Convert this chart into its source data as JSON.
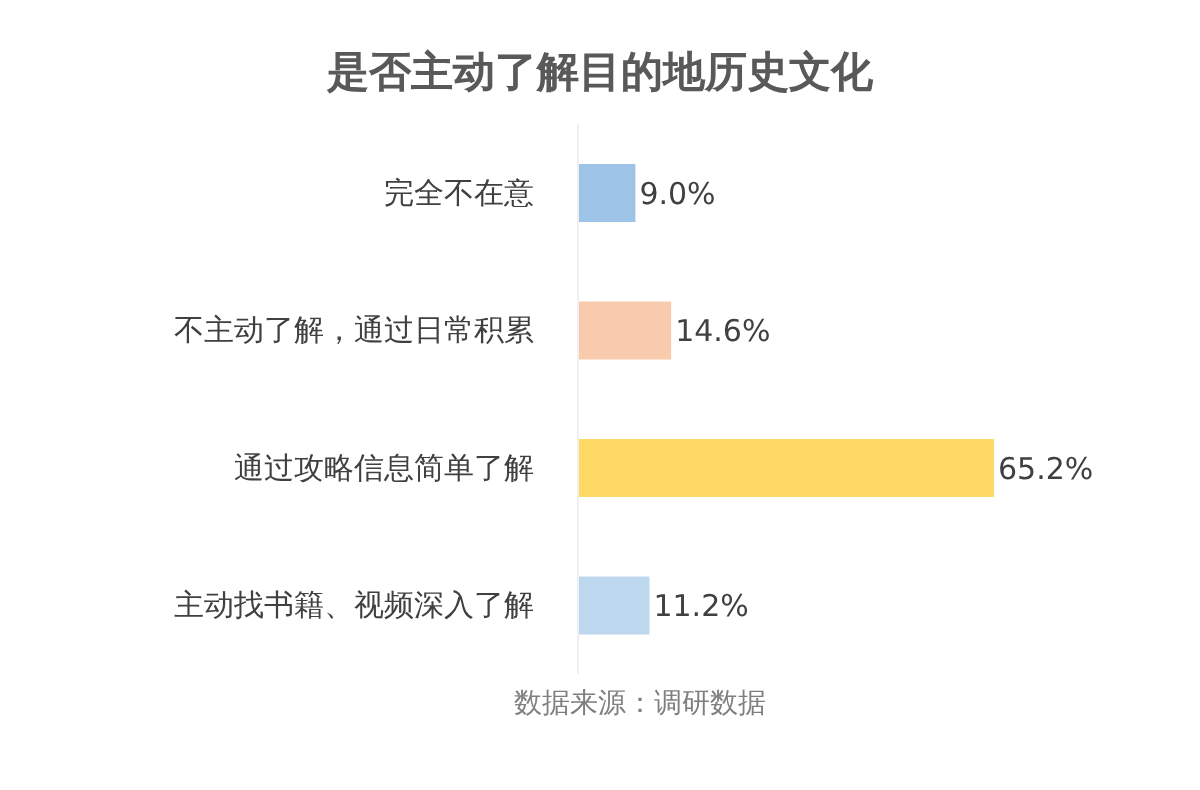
{
  "chart_data": {
    "type": "bar",
    "orientation": "horizontal",
    "title": "是否主动了解目的地历史文化",
    "categories": [
      "完全不在意",
      "不主动了解，通过日常积累",
      "通过攻略信息简单了解",
      "主动找书籍、视频深入了解"
    ],
    "values": [
      9.0,
      14.6,
      65.2,
      11.2
    ],
    "value_labels": [
      "9.0%",
      "14.6%",
      "65.2%",
      "11.2%"
    ],
    "colors": [
      "#9dc3e6",
      "#f8cbad",
      "#ffd966",
      "#bdd7ee"
    ],
    "annotations": [
      "数据来源：调研数据"
    ]
  }
}
